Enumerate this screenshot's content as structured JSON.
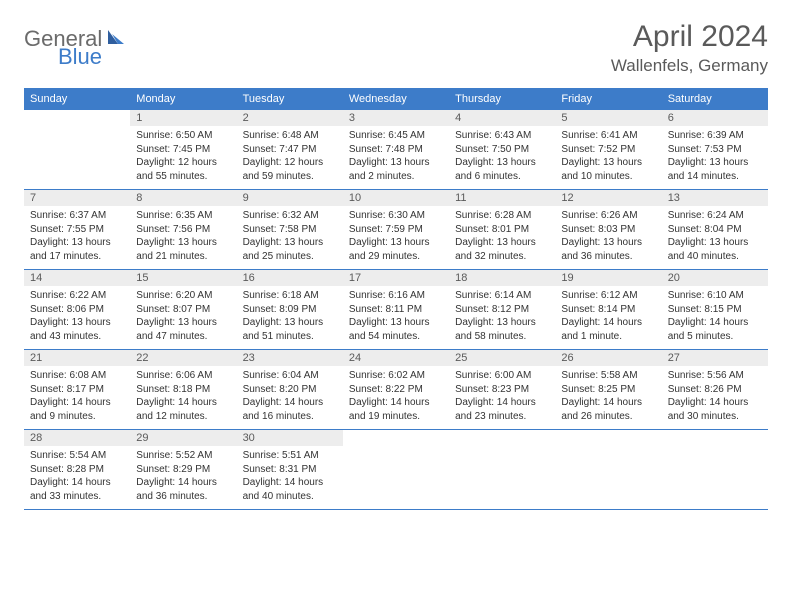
{
  "logo": {
    "general": "General",
    "blue": "Blue"
  },
  "title": "April 2024",
  "location": "Wallenfels, Germany",
  "colors": {
    "header_bg": "#3d7cc9",
    "header_text": "#ffffff",
    "daynum_bg": "#ededed",
    "daynum_text": "#5a5a5a",
    "body_text": "#333333",
    "rule": "#3d7cc9",
    "logo_gray": "#6b6b6b",
    "logo_blue": "#3d7cc9"
  },
  "week_labels": [
    "Sunday",
    "Monday",
    "Tuesday",
    "Wednesday",
    "Thursday",
    "Friday",
    "Saturday"
  ],
  "leading_blanks": 1,
  "days": [
    {
      "n": 1,
      "sunrise": "6:50 AM",
      "sunset": "7:45 PM",
      "daylight": "12 hours and 55 minutes."
    },
    {
      "n": 2,
      "sunrise": "6:48 AM",
      "sunset": "7:47 PM",
      "daylight": "12 hours and 59 minutes."
    },
    {
      "n": 3,
      "sunrise": "6:45 AM",
      "sunset": "7:48 PM",
      "daylight": "13 hours and 2 minutes."
    },
    {
      "n": 4,
      "sunrise": "6:43 AM",
      "sunset": "7:50 PM",
      "daylight": "13 hours and 6 minutes."
    },
    {
      "n": 5,
      "sunrise": "6:41 AM",
      "sunset": "7:52 PM",
      "daylight": "13 hours and 10 minutes."
    },
    {
      "n": 6,
      "sunrise": "6:39 AM",
      "sunset": "7:53 PM",
      "daylight": "13 hours and 14 minutes."
    },
    {
      "n": 7,
      "sunrise": "6:37 AM",
      "sunset": "7:55 PM",
      "daylight": "13 hours and 17 minutes."
    },
    {
      "n": 8,
      "sunrise": "6:35 AM",
      "sunset": "7:56 PM",
      "daylight": "13 hours and 21 minutes."
    },
    {
      "n": 9,
      "sunrise": "6:32 AM",
      "sunset": "7:58 PM",
      "daylight": "13 hours and 25 minutes."
    },
    {
      "n": 10,
      "sunrise": "6:30 AM",
      "sunset": "7:59 PM",
      "daylight": "13 hours and 29 minutes."
    },
    {
      "n": 11,
      "sunrise": "6:28 AM",
      "sunset": "8:01 PM",
      "daylight": "13 hours and 32 minutes."
    },
    {
      "n": 12,
      "sunrise": "6:26 AM",
      "sunset": "8:03 PM",
      "daylight": "13 hours and 36 minutes."
    },
    {
      "n": 13,
      "sunrise": "6:24 AM",
      "sunset": "8:04 PM",
      "daylight": "13 hours and 40 minutes."
    },
    {
      "n": 14,
      "sunrise": "6:22 AM",
      "sunset": "8:06 PM",
      "daylight": "13 hours and 43 minutes."
    },
    {
      "n": 15,
      "sunrise": "6:20 AM",
      "sunset": "8:07 PM",
      "daylight": "13 hours and 47 minutes."
    },
    {
      "n": 16,
      "sunrise": "6:18 AM",
      "sunset": "8:09 PM",
      "daylight": "13 hours and 51 minutes."
    },
    {
      "n": 17,
      "sunrise": "6:16 AM",
      "sunset": "8:11 PM",
      "daylight": "13 hours and 54 minutes."
    },
    {
      "n": 18,
      "sunrise": "6:14 AM",
      "sunset": "8:12 PM",
      "daylight": "13 hours and 58 minutes."
    },
    {
      "n": 19,
      "sunrise": "6:12 AM",
      "sunset": "8:14 PM",
      "daylight": "14 hours and 1 minute."
    },
    {
      "n": 20,
      "sunrise": "6:10 AM",
      "sunset": "8:15 PM",
      "daylight": "14 hours and 5 minutes."
    },
    {
      "n": 21,
      "sunrise": "6:08 AM",
      "sunset": "8:17 PM",
      "daylight": "14 hours and 9 minutes."
    },
    {
      "n": 22,
      "sunrise": "6:06 AM",
      "sunset": "8:18 PM",
      "daylight": "14 hours and 12 minutes."
    },
    {
      "n": 23,
      "sunrise": "6:04 AM",
      "sunset": "8:20 PM",
      "daylight": "14 hours and 16 minutes."
    },
    {
      "n": 24,
      "sunrise": "6:02 AM",
      "sunset": "8:22 PM",
      "daylight": "14 hours and 19 minutes."
    },
    {
      "n": 25,
      "sunrise": "6:00 AM",
      "sunset": "8:23 PM",
      "daylight": "14 hours and 23 minutes."
    },
    {
      "n": 26,
      "sunrise": "5:58 AM",
      "sunset": "8:25 PM",
      "daylight": "14 hours and 26 minutes."
    },
    {
      "n": 27,
      "sunrise": "5:56 AM",
      "sunset": "8:26 PM",
      "daylight": "14 hours and 30 minutes."
    },
    {
      "n": 28,
      "sunrise": "5:54 AM",
      "sunset": "8:28 PM",
      "daylight": "14 hours and 33 minutes."
    },
    {
      "n": 29,
      "sunrise": "5:52 AM",
      "sunset": "8:29 PM",
      "daylight": "14 hours and 36 minutes."
    },
    {
      "n": 30,
      "sunrise": "5:51 AM",
      "sunset": "8:31 PM",
      "daylight": "14 hours and 40 minutes."
    }
  ],
  "labels": {
    "sunrise_prefix": "Sunrise: ",
    "sunset_prefix": "Sunset: ",
    "daylight_prefix": "Daylight: "
  }
}
